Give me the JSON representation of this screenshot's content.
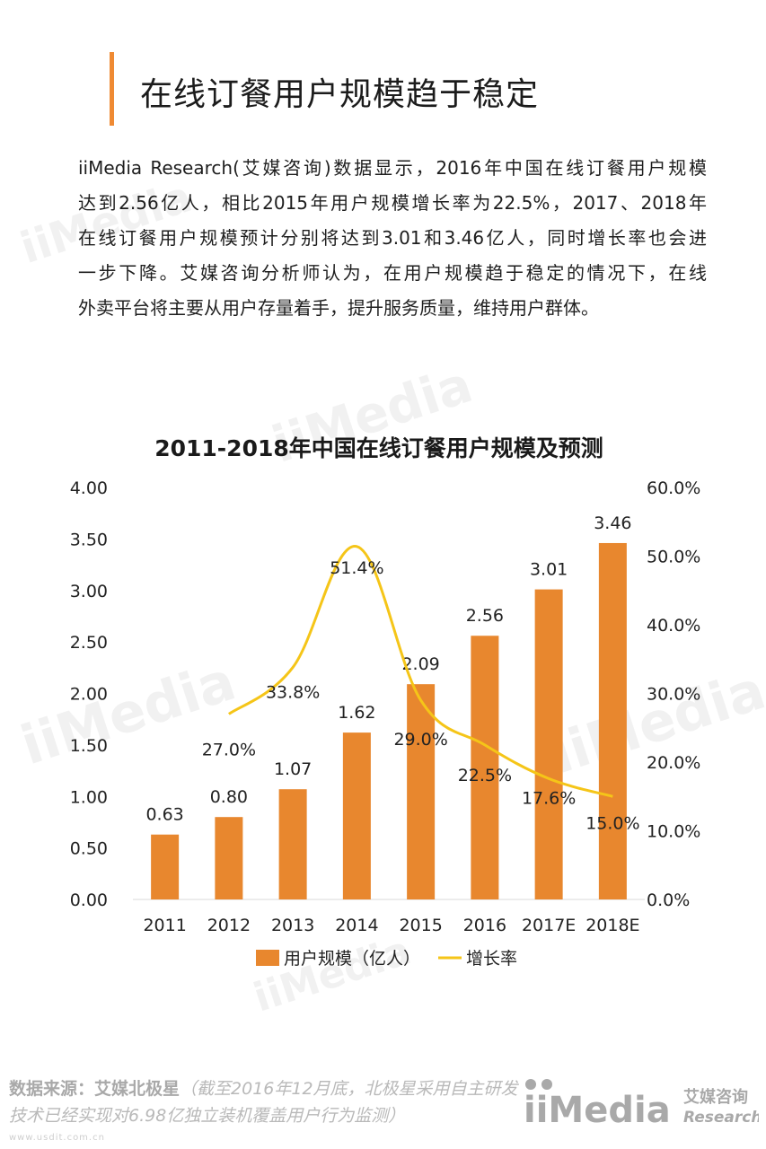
{
  "page_title": "在线订餐用户规模趋于稳定",
  "intro_lines": [
    "iiMedia Research(艾媒咨询)数据显示，2016年中国在线订餐用户规模",
    "达到2.56亿人，相比2015年用户规模增长率为22.5%，2017、2018年",
    "在线订餐用户规模预计分别将达到3.01和3.46亿人，同时增长率也会进",
    "一步下降。艾媒咨询分析师认为，在用户规模趋于稳定的情况下，在线",
    "外卖平台将主要从用户存量着手，提升服务质量，维持用户群体。"
  ],
  "colors": {
    "accent": "#ef8a33",
    "bar": "#e8872e",
    "line": "#f5c518",
    "text": "#1e1e1e",
    "muted": "#b9b9b9"
  },
  "chart_data": {
    "type": "bar",
    "title": "2011-2018年中国在线订餐用户规模及预测",
    "categories": [
      "2011",
      "2012",
      "2013",
      "2014",
      "2015",
      "2016",
      "2017E",
      "2018E"
    ],
    "series": [
      {
        "name": "用户规模（亿人）",
        "type": "bar",
        "axis": "left",
        "values": [
          0.63,
          0.8,
          1.07,
          1.62,
          2.09,
          2.56,
          3.01,
          3.46
        ],
        "labels": [
          "0.63",
          "0.80",
          "1.07",
          "1.62",
          "2.09",
          "2.56",
          "3.01",
          "3.46"
        ]
      },
      {
        "name": "增长率",
        "type": "line",
        "axis": "right",
        "values": [
          null,
          27.0,
          33.8,
          51.4,
          29.0,
          22.5,
          17.6,
          15.0
        ],
        "labels": [
          "",
          "27.0%",
          "33.8%",
          "51.4%",
          "29.0%",
          "22.5%",
          "17.6%",
          "15.0%"
        ]
      }
    ],
    "y_left": {
      "min": 0,
      "max": 4,
      "ticks": [
        "0.00",
        "0.50",
        "1.00",
        "1.50",
        "2.00",
        "2.50",
        "3.00",
        "3.50",
        "4.00"
      ]
    },
    "y_right": {
      "min": 0,
      "max": 60,
      "ticks": [
        "0.0%",
        "10.0%",
        "20.0%",
        "30.0%",
        "40.0%",
        "50.0%",
        "60.0%"
      ]
    },
    "grid": false,
    "legend": "bottom-center"
  },
  "source": {
    "lead": "数据来源：艾媒北极星",
    "note": "（截至2016年12月底，北极星采用自主研发技术已经实现对6.98亿独立装机覆盖用户行为监测）"
  },
  "logo": {
    "brand": "iiMedia",
    "cn": "艾媒咨询",
    "en": "Research"
  },
  "footer_url": "www.usdit.com.cn"
}
